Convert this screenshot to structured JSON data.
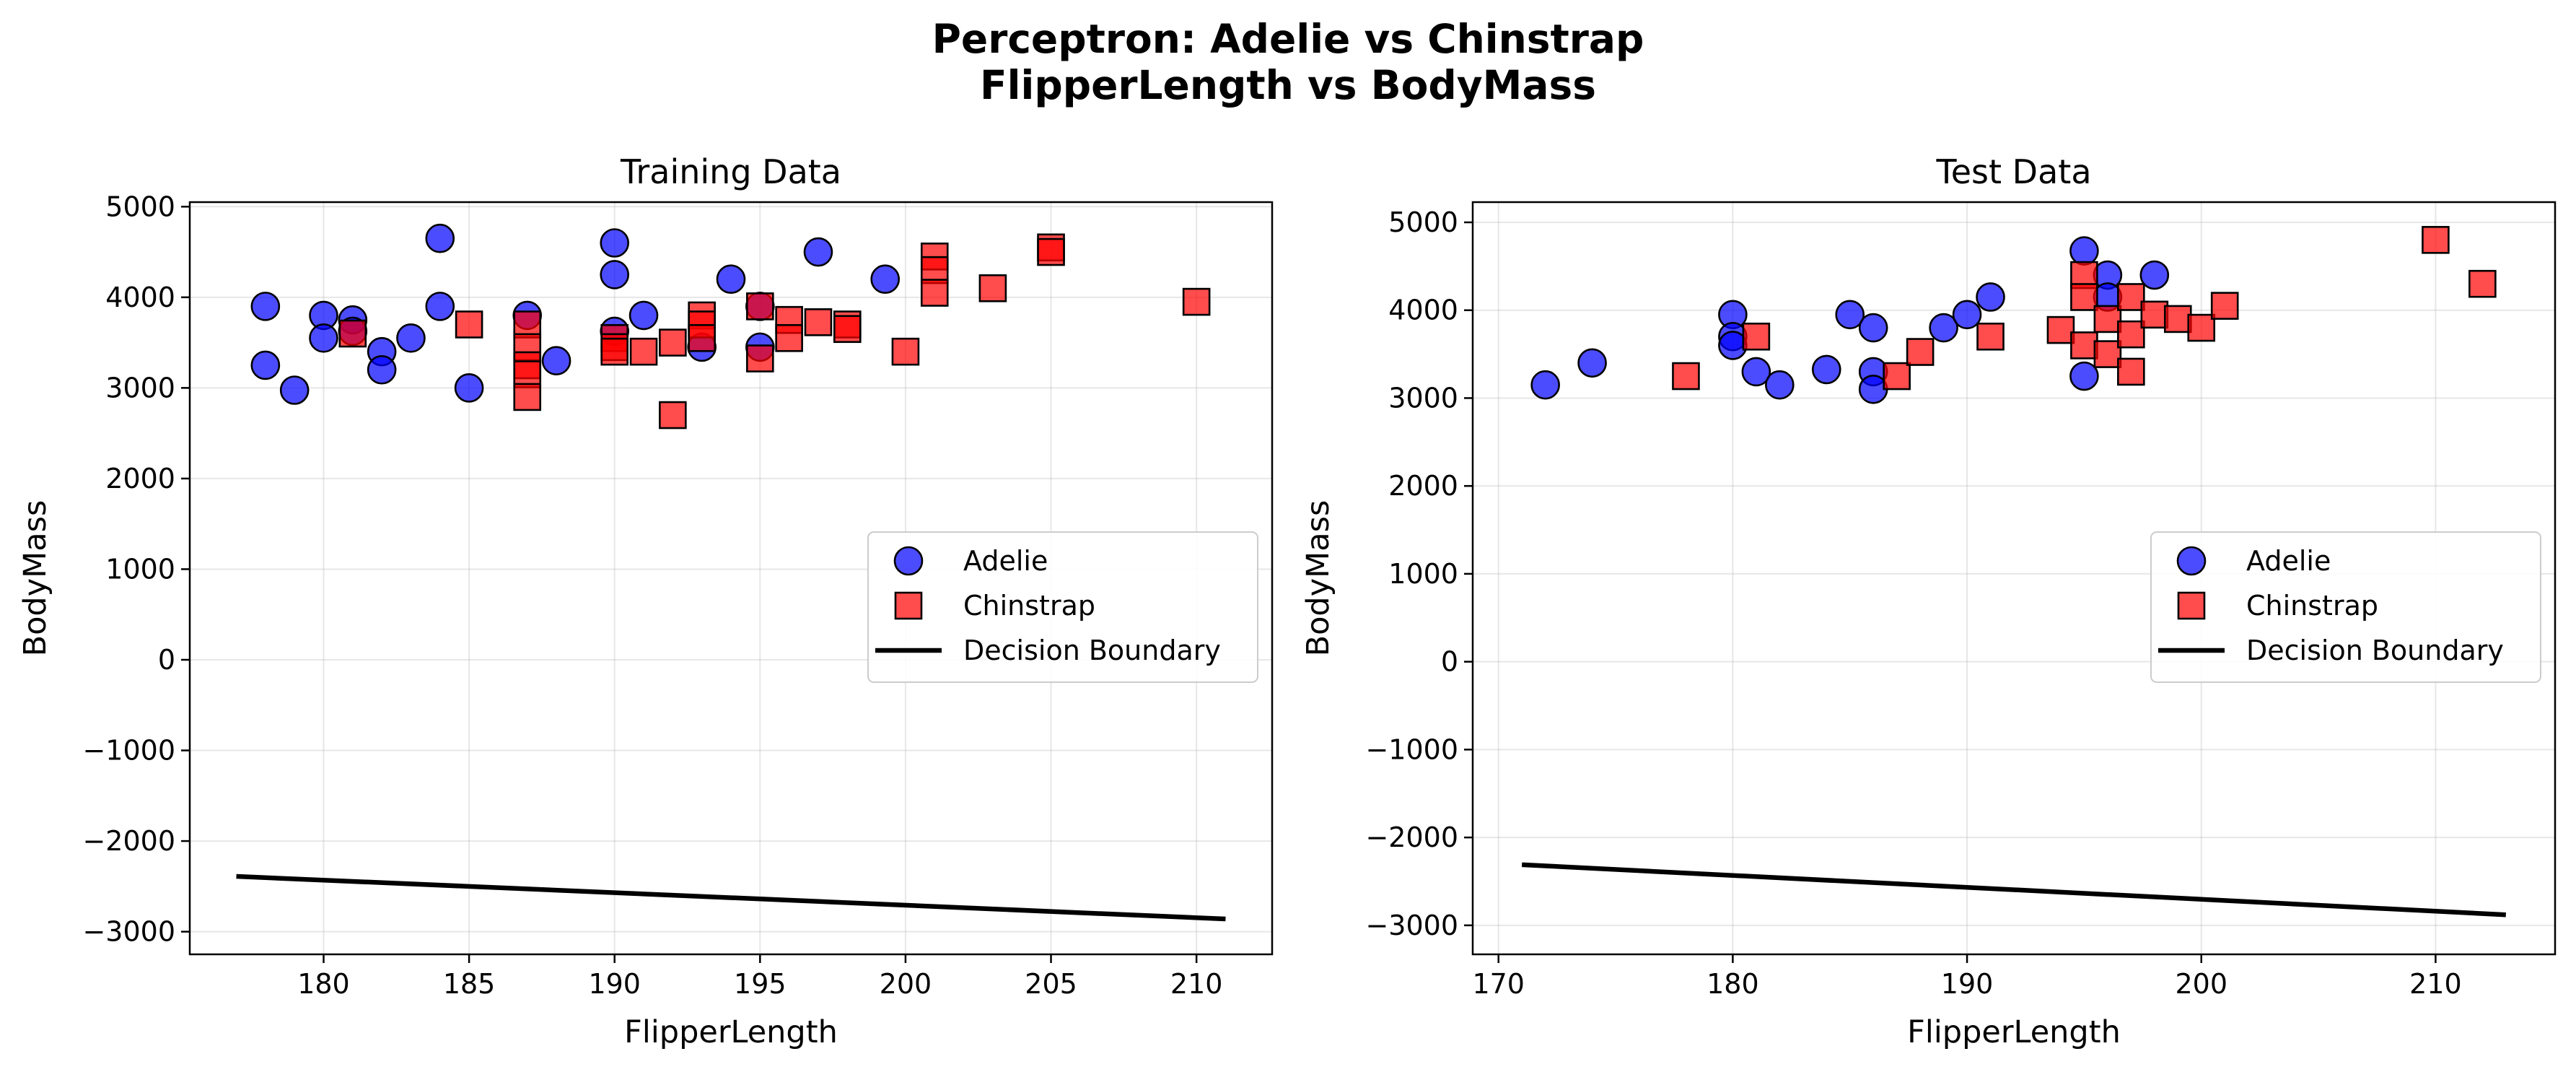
{
  "figure_title_lines": [
    "Perceptron: Adelie vs Chinstrap",
    "FlipperLength vs BodyMass"
  ],
  "colors": {
    "adelie_fill": "#0000ff",
    "chinstrap_fill": "#ff0000",
    "marker_edge": "#000000",
    "boundary": "#000000"
  },
  "chart_data": [
    {
      "type": "scatter",
      "title": "Training Data",
      "xlabel": "FlipperLength",
      "ylabel": "BodyMass",
      "xlim": [
        175.4,
        212.6
      ],
      "ylim": [
        -3250,
        5050
      ],
      "xticks": [
        180,
        185,
        190,
        195,
        200,
        205,
        210
      ],
      "yticks": [
        -3000,
        -2000,
        -1000,
        0,
        1000,
        2000,
        3000,
        4000,
        5000
      ],
      "grid": true,
      "legend": {
        "position": "center-right",
        "entries": [
          {
            "label": "Adelie",
            "kind": "circle"
          },
          {
            "label": "Chinstrap",
            "kind": "square"
          },
          {
            "label": "Decision Boundary",
            "kind": "line"
          }
        ]
      },
      "series": [
        {
          "name": "Adelie",
          "marker": "circle",
          "points": [
            [
              178,
              3900
            ],
            [
              178,
              3250
            ],
            [
              179,
              2975
            ],
            [
              180,
              3800
            ],
            [
              180,
              3550
            ],
            [
              181,
              3750
            ],
            [
              181,
              3625
            ],
            [
              182,
              3400
            ],
            [
              182,
              3200
            ],
            [
              183,
              3550
            ],
            [
              184,
              4650
            ],
            [
              184,
              3900
            ],
            [
              185,
              3000
            ],
            [
              187,
              3800
            ],
            [
              188,
              3300
            ],
            [
              190,
              4600
            ],
            [
              190,
              4250
            ],
            [
              190,
              3625
            ],
            [
              191,
              3800
            ],
            [
              193,
              3450
            ],
            [
              194,
              4200
            ],
            [
              195,
              3900
            ],
            [
              195,
              3450
            ],
            [
              197,
              4500
            ],
            [
              199.3,
              4200
            ]
          ]
        },
        {
          "name": "Chinstrap",
          "marker": "square",
          "points": [
            [
              181,
              3600
            ],
            [
              185,
              3700
            ],
            [
              187,
              3700
            ],
            [
              187,
              3450
            ],
            [
              187,
              3250
            ],
            [
              187,
              3150
            ],
            [
              187,
              2900
            ],
            [
              190,
              3550
            ],
            [
              190,
              3450
            ],
            [
              190,
              3400
            ],
            [
              191,
              3400
            ],
            [
              192,
              3500
            ],
            [
              192,
              2700
            ],
            [
              193,
              3800
            ],
            [
              193,
              3700
            ],
            [
              193,
              3550
            ],
            [
              195,
              3900
            ],
            [
              195,
              3325
            ],
            [
              196,
              3750
            ],
            [
              196,
              3550
            ],
            [
              197,
              3725
            ],
            [
              198,
              3700
            ],
            [
              198,
              3650
            ],
            [
              200,
              3400
            ],
            [
              201,
              4450
            ],
            [
              201,
              4300
            ],
            [
              201,
              4050
            ],
            [
              203,
              4100
            ],
            [
              205,
              4550
            ],
            [
              205,
              4500
            ],
            [
              210,
              3950
            ]
          ]
        }
      ],
      "decision_boundary": {
        "x": [
          177,
          211
        ],
        "y": [
          -2390,
          -2860
        ]
      }
    },
    {
      "type": "scatter",
      "title": "Test Data",
      "xlabel": "FlipperLength",
      "ylabel": "BodyMass",
      "xlim": [
        168.9,
        215.1
      ],
      "ylim": [
        -3330,
        5230
      ],
      "xticks": [
        170,
        180,
        190,
        200,
        210
      ],
      "yticks": [
        -3000,
        -2000,
        -1000,
        0,
        1000,
        2000,
        3000,
        4000,
        5000
      ],
      "grid": true,
      "legend": {
        "position": "center-right",
        "entries": [
          {
            "label": "Adelie",
            "kind": "circle"
          },
          {
            "label": "Chinstrap",
            "kind": "square"
          },
          {
            "label": "Decision Boundary",
            "kind": "line"
          }
        ]
      },
      "series": [
        {
          "name": "Adelie",
          "marker": "circle",
          "points": [
            [
              172,
              3150
            ],
            [
              174,
              3400
            ],
            [
              180,
              3950
            ],
            [
              180,
              3700
            ],
            [
              180,
              3600
            ],
            [
              181,
              3300
            ],
            [
              182,
              3150
            ],
            [
              184,
              3325
            ],
            [
              185,
              3950
            ],
            [
              186,
              3800
            ],
            [
              186,
              3300
            ],
            [
              186,
              3100
            ],
            [
              189,
              3800
            ],
            [
              190,
              3950
            ],
            [
              191,
              4150
            ],
            [
              195,
              4675
            ],
            [
              195,
              3250
            ],
            [
              196,
              4400
            ],
            [
              196,
              4150
            ],
            [
              198,
              4400
            ]
          ]
        },
        {
          "name": "Chinstrap",
          "marker": "square",
          "points": [
            [
              178,
              3250
            ],
            [
              181,
              3700
            ],
            [
              187,
              3250
            ],
            [
              188,
              3525
            ],
            [
              191,
              3700
            ],
            [
              194,
              3775
            ],
            [
              195,
              4400
            ],
            [
              195,
              4150
            ],
            [
              195,
              3600
            ],
            [
              196,
              3900
            ],
            [
              196,
              3500
            ],
            [
              197,
              4150
            ],
            [
              197,
              3725
            ],
            [
              197,
              3300
            ],
            [
              198,
              3950
            ],
            [
              199,
              3900
            ],
            [
              200,
              3800
            ],
            [
              201,
              4050
            ],
            [
              210,
              4800
            ],
            [
              212,
              4300
            ]
          ]
        }
      ],
      "decision_boundary": {
        "x": [
          171,
          213
        ],
        "y": [
          -2310,
          -2880
        ]
      }
    }
  ]
}
